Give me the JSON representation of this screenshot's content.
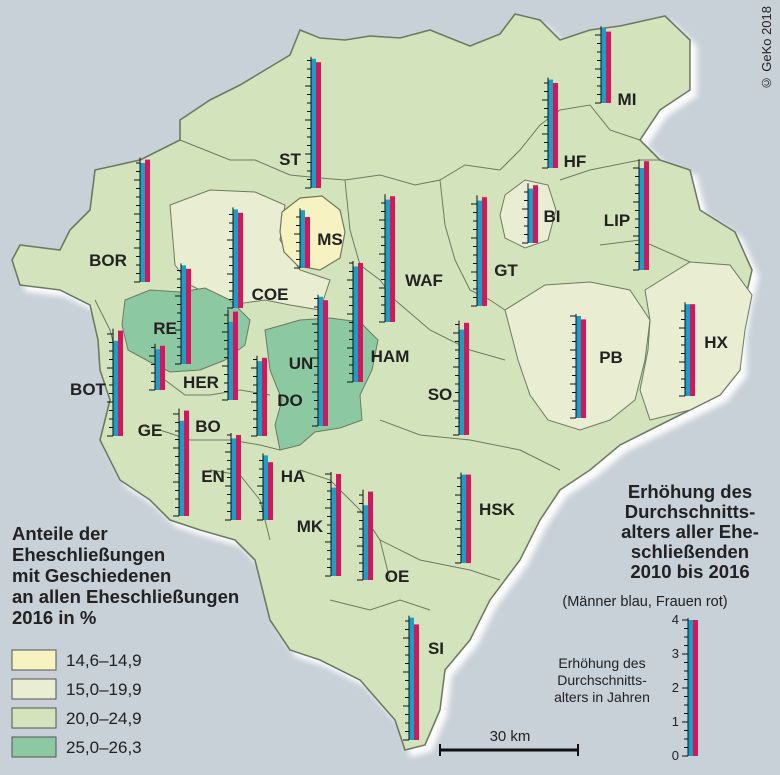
{
  "copyright": "© GeKo 2018",
  "legend": {
    "title_lines": [
      "Anteile der",
      "Eheschließungen",
      "mit Geschiedenen",
      "an allen Eheschließungen",
      "2016 in %"
    ],
    "classes": [
      {
        "range": "14,6–14,9",
        "color": "#f6f2c2"
      },
      {
        "range": "15,0–19,9",
        "color": "#e9edd2"
      },
      {
        "range": "20,0–24,9",
        "color": "#d3e4bc"
      },
      {
        "range": "25,0–26,3",
        "color": "#8cc8a2"
      }
    ]
  },
  "bar_legend": {
    "title_lines": [
      "Erhöhung des",
      "Durchschnitts-",
      "alters aller Ehe-",
      "schließenden",
      "2010 bis 2016"
    ],
    "subtitle": "(Männer blau, Frauen rot)",
    "caption_lines": [
      "Erhöhung des",
      "Durchschnitts-",
      "alters in Jahren"
    ],
    "ticks": [
      "0",
      "1",
      "2",
      "3",
      "4"
    ],
    "colors": {
      "men": "#1aa0c8",
      "women": "#d4175c"
    }
  },
  "scale_bar": {
    "label": "30 km"
  },
  "districts": [
    {
      "code": "ST",
      "men": 3.8,
      "women": 3.7
    },
    {
      "code": "MI",
      "men": 2.2,
      "women": 2.1
    },
    {
      "code": "HF",
      "men": 2.6,
      "women": 2.5
    },
    {
      "code": "BOR",
      "men": 3.5,
      "women": 3.6
    },
    {
      "code": "MS",
      "men": 1.7,
      "women": 1.5
    },
    {
      "code": "COE",
      "men": 2.9,
      "women": 2.8
    },
    {
      "code": "WAF",
      "men": 3.6,
      "women": 3.7
    },
    {
      "code": "GT",
      "men": 3.1,
      "women": 3.2
    },
    {
      "code": "BI",
      "men": 1.6,
      "women": 1.7
    },
    {
      "code": "LIP",
      "men": 3.0,
      "women": 3.2
    },
    {
      "code": "RE",
      "men": 2.9,
      "women": 2.8
    },
    {
      "code": "BOT",
      "men": 2.8,
      "women": 3.1
    },
    {
      "code": "GE",
      "men": 1.2,
      "women": 1.3
    },
    {
      "code": "HER",
      "men": 2.3,
      "women": 2.6
    },
    {
      "code": "BO",
      "men": 2.8,
      "women": 3.1
    },
    {
      "code": "DO",
      "men": 2.2,
      "women": 2.3
    },
    {
      "code": "UN",
      "men": 3.8,
      "women": 3.7
    },
    {
      "code": "HAM",
      "men": 3.4,
      "women": 3.5
    },
    {
      "code": "SO",
      "men": 3.1,
      "women": 3.3
    },
    {
      "code": "PB",
      "men": 3.0,
      "women": 2.9
    },
    {
      "code": "HX",
      "men": 2.7,
      "women": 2.7
    },
    {
      "code": "EN",
      "men": 2.4,
      "women": 2.5
    },
    {
      "code": "HA",
      "men": 1.9,
      "women": 1.7
    },
    {
      "code": "HSK",
      "men": 2.6,
      "women": 2.6
    },
    {
      "code": "MK",
      "men": 2.6,
      "women": 3.0
    },
    {
      "code": "OE",
      "men": 2.2,
      "women": 2.6
    },
    {
      "code": "SI",
      "men": 3.6,
      "women": 3.4
    }
  ]
}
